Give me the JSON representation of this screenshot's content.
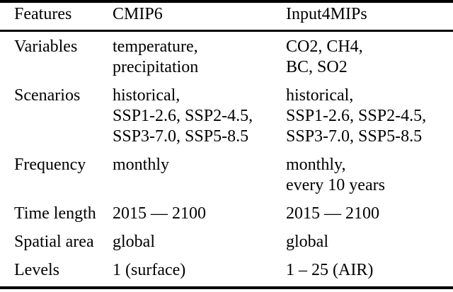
{
  "colors": {
    "background": "#ffffff",
    "text": "#000000",
    "rule": "#000000"
  },
  "table": {
    "columns": [
      "Features",
      "CMIP6",
      "Input4MIPs"
    ],
    "rows": [
      {
        "feature": "Variables",
        "cmip6": "temperature,\nprecipitation",
        "input4mips": "CO2, CH4,\nBC, SO2"
      },
      {
        "feature": "Scenarios",
        "cmip6": "historical,\nSSP1-2.6, SSP2-4.5,\nSSP3-7.0, SSP5-8.5",
        "input4mips": "historical,\nSSP1-2.6, SSP2-4.5,\nSSP3-7.0, SSP5-8.5"
      },
      {
        "feature": "Frequency",
        "cmip6": "monthly",
        "input4mips": "monthly,\nevery 10 years"
      },
      {
        "feature": "Time length",
        "cmip6": "2015 — 2100",
        "input4mips": "2015 — 2100"
      },
      {
        "feature": "Spatial area",
        "cmip6": "global",
        "input4mips": "global"
      },
      {
        "feature": "Levels",
        "cmip6": "1 (surface)",
        "input4mips": "1 – 25 (AIR)"
      }
    ]
  }
}
